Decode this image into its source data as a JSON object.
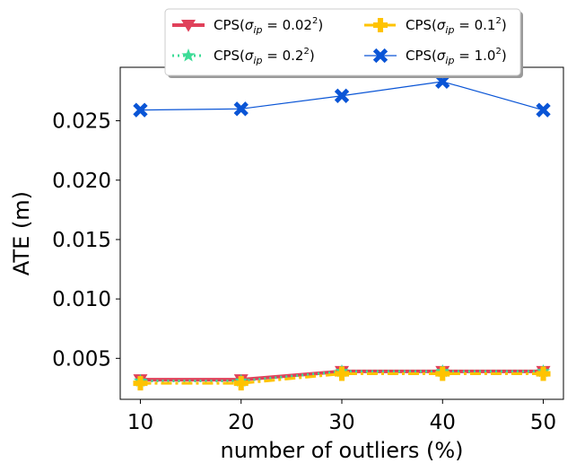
{
  "chart_data": {
    "type": "line",
    "x": [
      10,
      20,
      30,
      40,
      50
    ],
    "xlabel": "number of outliers (%)",
    "ylabel": "ATE (m)",
    "xlim": [
      8,
      52
    ],
    "ylim": [
      0.00155,
      0.0295
    ],
    "xticks": [
      "10",
      "20",
      "30",
      "40",
      "50"
    ],
    "yticks": [
      "0.005",
      "0.010",
      "0.015",
      "0.020",
      "0.025"
    ],
    "grid": false,
    "legend_position": "top-center (above plot)",
    "legend_columns": 2,
    "series": [
      {
        "name": "CPS(σ_ip = 0.02²)",
        "legend": {
          "base": "CPS(",
          "sigma": "σ",
          "sub": "ip",
          "eq": " = 0.02",
          "sup": "2",
          "close": ")"
        },
        "values": [
          0.0032,
          0.0032,
          0.0039,
          0.0039,
          0.0039
        ],
        "color": "#e0415a",
        "marker": "triangle-down",
        "line_style": "solid",
        "line_width": 4
      },
      {
        "name": "CPS(σ_ip = 0.2²)",
        "legend": {
          "base": "CPS(",
          "sigma": "σ",
          "sub": "ip",
          "eq": " = 0.2",
          "sup": "2",
          "close": ")"
        },
        "values": [
          0.0031,
          0.0031,
          0.0039,
          0.0039,
          0.0039
        ],
        "color": "#3ddc97",
        "marker": "star",
        "line_style": "dotted",
        "line_width": 3
      },
      {
        "name": "CPS(σ_ip = 0.1²)",
        "legend": {
          "base": "CPS(",
          "sigma": "σ",
          "sub": "ip",
          "eq": " = 0.1",
          "sup": "2",
          "close": ")"
        },
        "values": [
          0.0029,
          0.0029,
          0.0037,
          0.0037,
          0.0037
        ],
        "color": "#ffc300",
        "marker": "plus",
        "line_style": "dashdot",
        "line_width": 3
      },
      {
        "name": "CPS(σ_ip = 1.0²)",
        "legend": {
          "base": "CPS(",
          "sigma": "σ",
          "sub": "ip",
          "eq": " = 1.0",
          "sup": "2",
          "close": ")"
        },
        "values": [
          0.0259,
          0.026,
          0.0271,
          0.0283,
          0.0259
        ],
        "color": "#0a55d6",
        "marker": "x",
        "line_style": "solid",
        "line_width": 1.2
      }
    ]
  }
}
